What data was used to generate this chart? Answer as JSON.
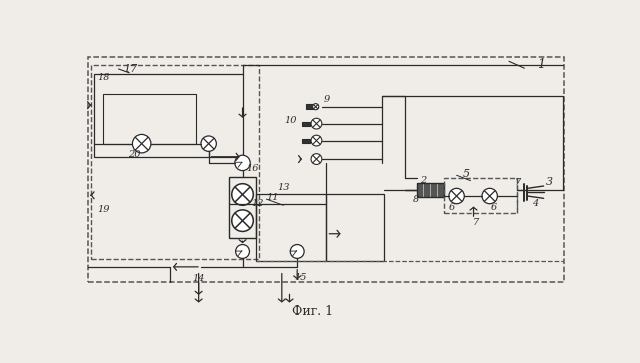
{
  "bg_color": "#f0ede8",
  "lc": "#2a2a2a",
  "dc": "#555555",
  "fc_gray": "#888888",
  "fig_caption": "Фиг. 1"
}
